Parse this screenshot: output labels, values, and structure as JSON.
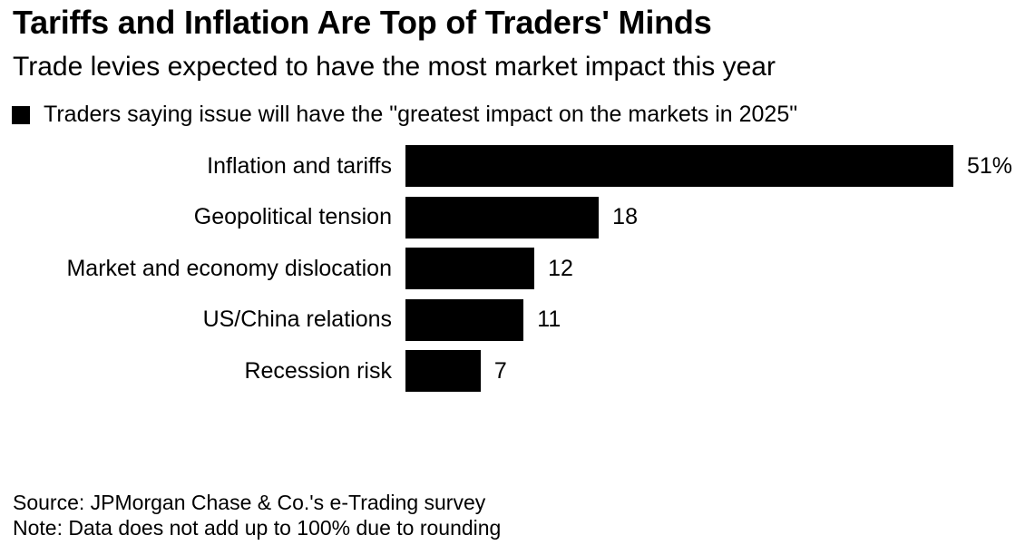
{
  "header": {
    "title": "Tariffs and Inflation Are Top of Traders' Minds",
    "subtitle": "Trade levies expected to have the most market impact this year"
  },
  "legend": {
    "label": "Traders saying issue will have the \"greatest impact on the markets in 2025\"",
    "swatch_color": "#000000"
  },
  "chart_data": {
    "type": "bar",
    "orientation": "horizontal",
    "title": "Tariffs and Inflation Are Top of Traders' Minds",
    "subtitle": "Trade levies expected to have the most market impact this year",
    "series_name": "Traders saying issue will have the \"greatest impact on the markets in 2025\"",
    "categories": [
      "Inflation and tariffs",
      "Geopolitical tension",
      "Market and economy dislocation",
      "US/China relations",
      "Recession risk"
    ],
    "values": [
      51,
      18,
      12,
      11,
      7
    ],
    "value_labels": [
      "51%",
      "18",
      "12",
      "11",
      "7"
    ],
    "unit": "%",
    "xlim": [
      0,
      51
    ],
    "grid": false,
    "legend_position": "top-left",
    "bar_color": "#000000",
    "background_color": "#ffffff"
  },
  "footer": {
    "source": "Source: JPMorgan Chase & Co.'s e-Trading survey",
    "note": "Note: Data does not add up to 100% due to rounding"
  }
}
